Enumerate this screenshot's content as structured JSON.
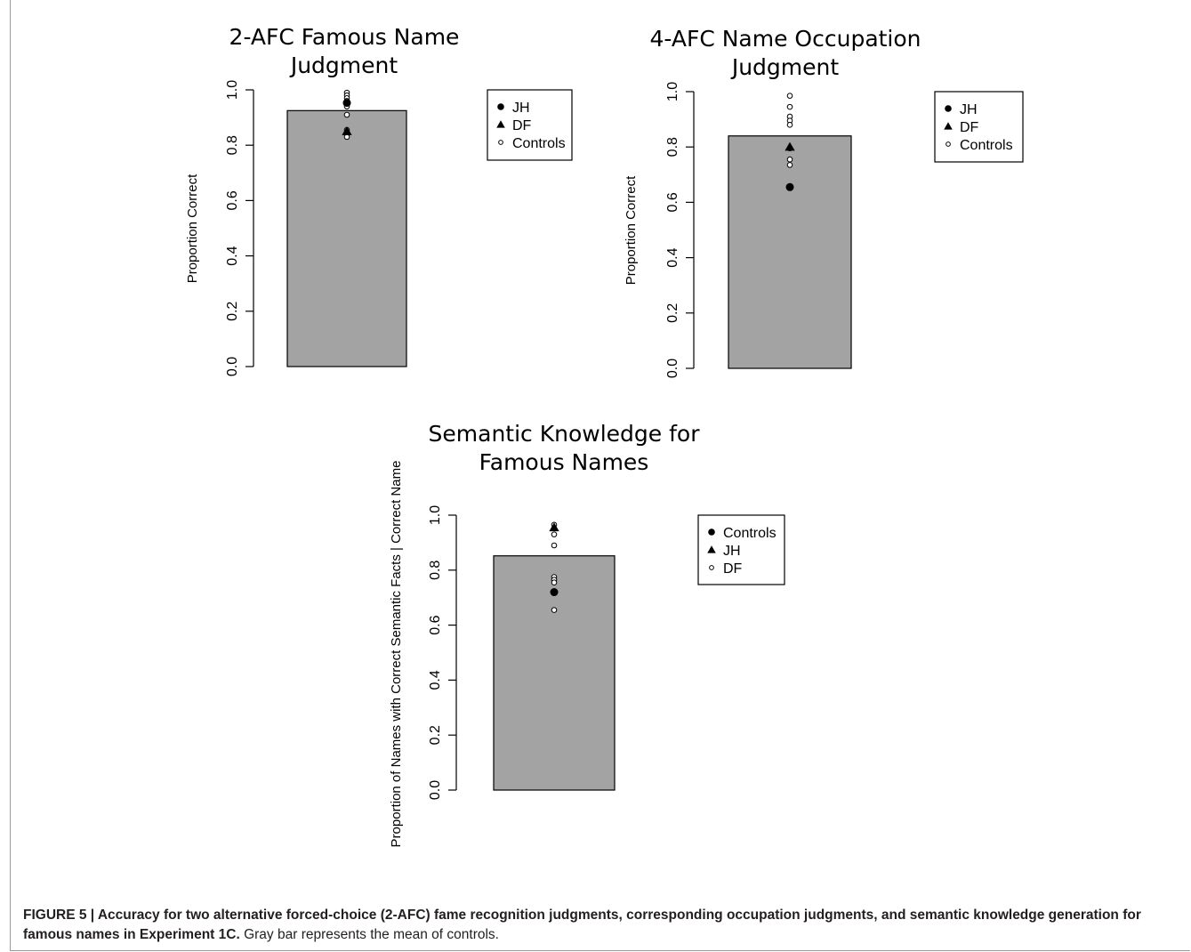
{
  "chart_data": [
    {
      "type": "bar",
      "title_lines": [
        "2-AFC Famous Name",
        "Judgment"
      ],
      "ylabel": "Proportion Correct",
      "ylim": [
        0,
        1
      ],
      "yticks": [
        "0.0",
        "0.2",
        "0.4",
        "0.6",
        "0.8",
        "1.0"
      ],
      "bar": {
        "name": "Controls mean",
        "value": 0.925,
        "color": "#a3a3a3"
      },
      "points": [
        {
          "series": "JH",
          "shape": "filled-circle",
          "y": 0.953
        },
        {
          "series": "DF",
          "shape": "triangle",
          "y": 0.85
        },
        {
          "series": "Controls",
          "shape": "open-circle",
          "y": 0.99
        },
        {
          "series": "Controls",
          "shape": "open-circle",
          "y": 0.98
        },
        {
          "series": "Controls",
          "shape": "open-circle",
          "y": 0.97
        },
        {
          "series": "Controls",
          "shape": "open-circle",
          "y": 0.96
        },
        {
          "series": "Controls",
          "shape": "open-circle",
          "y": 0.94
        },
        {
          "series": "Controls",
          "shape": "open-circle",
          "y": 0.91
        },
        {
          "series": "Controls",
          "shape": "open-circle",
          "y": 0.855
        },
        {
          "series": "Controls",
          "shape": "open-circle",
          "y": 0.84
        },
        {
          "series": "Controls",
          "shape": "open-circle",
          "y": 0.83
        }
      ],
      "legend": [
        {
          "label": "JH",
          "shape": "filled-circle"
        },
        {
          "label": "DF",
          "shape": "triangle"
        },
        {
          "label": "Controls",
          "shape": "open-circle"
        }
      ]
    },
    {
      "type": "bar",
      "title_lines": [
        "4-AFC Name Occupation",
        "Judgment"
      ],
      "ylabel": "Proportion Correct",
      "ylim": [
        0,
        1
      ],
      "yticks": [
        "0.0",
        "0.2",
        "0.4",
        "0.6",
        "0.8",
        "1.0"
      ],
      "bar": {
        "name": "Controls mean",
        "value": 0.84,
        "color": "#a3a3a3"
      },
      "points": [
        {
          "series": "JH",
          "shape": "filled-circle",
          "y": 0.655
        },
        {
          "series": "DF",
          "shape": "triangle",
          "y": 0.8
        },
        {
          "series": "Controls",
          "shape": "open-circle",
          "y": 0.985
        },
        {
          "series": "Controls",
          "shape": "open-circle",
          "y": 0.945
        },
        {
          "series": "Controls",
          "shape": "open-circle",
          "y": 0.91
        },
        {
          "series": "Controls",
          "shape": "open-circle",
          "y": 0.895
        },
        {
          "series": "Controls",
          "shape": "open-circle",
          "y": 0.88
        },
        {
          "series": "Controls",
          "shape": "open-circle",
          "y": 0.795
        },
        {
          "series": "Controls",
          "shape": "open-circle",
          "y": 0.755
        },
        {
          "series": "Controls",
          "shape": "open-circle",
          "y": 0.735
        }
      ],
      "legend": [
        {
          "label": "JH",
          "shape": "filled-circle"
        },
        {
          "label": "DF",
          "shape": "triangle"
        },
        {
          "label": "Controls",
          "shape": "open-circle"
        }
      ]
    },
    {
      "type": "bar",
      "title_lines": [
        "Semantic Knowledge for",
        "Famous Names"
      ],
      "ylabel": "Proportion of Names with Correct Semantic Facts | Correct Name",
      "ylim": [
        0,
        1
      ],
      "yticks": [
        "0.0",
        "0.2",
        "0.4",
        "0.6",
        "0.8",
        "1.0"
      ],
      "bar": {
        "name": "Controls mean",
        "value": 0.852,
        "color": "#a3a3a3"
      },
      "points": [
        {
          "series": "Controls",
          "shape": "filled-circle",
          "y": 0.72
        },
        {
          "series": "JH",
          "shape": "triangle",
          "y": 0.955
        },
        {
          "series": "DF",
          "shape": "open-circle",
          "y": 0.965
        },
        {
          "series": "DF",
          "shape": "open-circle",
          "y": 0.93
        },
        {
          "series": "DF",
          "shape": "open-circle",
          "y": 0.89
        },
        {
          "series": "DF",
          "shape": "open-circle",
          "y": 0.775
        },
        {
          "series": "DF",
          "shape": "open-circle",
          "y": 0.765
        },
        {
          "series": "DF",
          "shape": "open-circle",
          "y": 0.755
        },
        {
          "series": "DF",
          "shape": "open-circle",
          "y": 0.655
        }
      ],
      "legend": [
        {
          "label": "Controls",
          "shape": "filled-circle"
        },
        {
          "label": "JH",
          "shape": "triangle"
        },
        {
          "label": "DF",
          "shape": "open-circle"
        }
      ]
    }
  ],
  "caption": {
    "label": "FIGURE 5 | ",
    "bold_text": "Accuracy for two alternative forced-choice (2-AFC) fame recognition judgments, corresponding occupation judgments, and semantic knowledge generation for famous names in Experiment 1C.",
    "text": " Gray bar represents the mean of controls."
  }
}
